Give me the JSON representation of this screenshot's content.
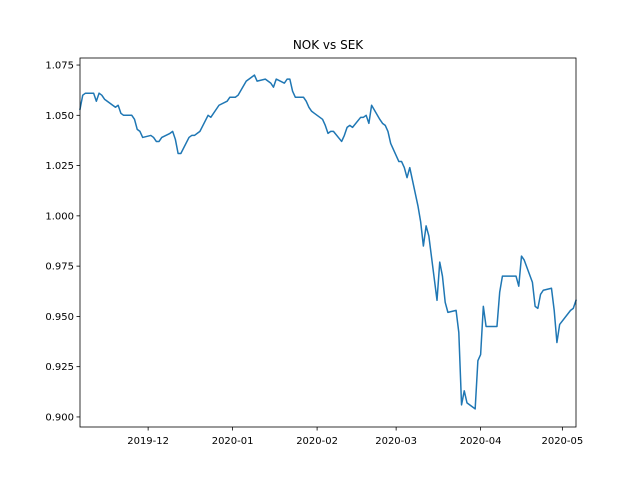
{
  "chart_data": {
    "type": "line",
    "title": "NOK vs SEK",
    "xlabel": "",
    "ylabel": "",
    "xlim": [
      "2019-11-06",
      "2020-05-06"
    ],
    "ylim": [
      0.895,
      1.0785
    ],
    "grid": false,
    "x_ticks": [
      {
        "date": "2019-12-01",
        "label": "2019-12"
      },
      {
        "date": "2020-01-01",
        "label": "2020-01"
      },
      {
        "date": "2020-02-01",
        "label": "2020-02"
      },
      {
        "date": "2020-03-01",
        "label": "2020-03"
      },
      {
        "date": "2020-04-01",
        "label": "2020-04"
      },
      {
        "date": "2020-05-01",
        "label": "2020-05"
      }
    ],
    "y_ticks": [
      {
        "value": 0.9,
        "label": "0.900"
      },
      {
        "value": 0.925,
        "label": "0.925"
      },
      {
        "value": 0.95,
        "label": "0.950"
      },
      {
        "value": 0.975,
        "label": "0.975"
      },
      {
        "value": 1.0,
        "label": "1.000"
      },
      {
        "value": 1.025,
        "label": "1.025"
      },
      {
        "value": 1.05,
        "label": "1.050"
      },
      {
        "value": 1.075,
        "label": "1.075"
      }
    ],
    "colors": {
      "line": "#1f77b4"
    },
    "series": [
      {
        "x": [
          "2019-11-06",
          "2019-11-07",
          "2019-11-08",
          "2019-11-11",
          "2019-11-12",
          "2019-11-13",
          "2019-11-14",
          "2019-11-15",
          "2019-11-18",
          "2019-11-19",
          "2019-11-20",
          "2019-11-21",
          "2019-11-22",
          "2019-11-25",
          "2019-11-26",
          "2019-11-27",
          "2019-11-28",
          "2019-11-29",
          "2019-12-02",
          "2019-12-03",
          "2019-12-04",
          "2019-12-05",
          "2019-12-06",
          "2019-12-09",
          "2019-12-10",
          "2019-12-11",
          "2019-12-12",
          "2019-12-13",
          "2019-12-16",
          "2019-12-17",
          "2019-12-18",
          "2019-12-19",
          "2019-12-20",
          "2019-12-23",
          "2019-12-24",
          "2019-12-27",
          "2019-12-30",
          "2019-12-31",
          "2020-01-02",
          "2020-01-03",
          "2020-01-06",
          "2020-01-07",
          "2020-01-08",
          "2020-01-09",
          "2020-01-10",
          "2020-01-13",
          "2020-01-14",
          "2020-01-15",
          "2020-01-16",
          "2020-01-17",
          "2020-01-20",
          "2020-01-21",
          "2020-01-22",
          "2020-01-23",
          "2020-01-24",
          "2020-01-27",
          "2020-01-28",
          "2020-01-29",
          "2020-01-30",
          "2020-01-31",
          "2020-02-03",
          "2020-02-04",
          "2020-02-05",
          "2020-02-06",
          "2020-02-07",
          "2020-02-10",
          "2020-02-11",
          "2020-02-12",
          "2020-02-13",
          "2020-02-14",
          "2020-02-17",
          "2020-02-18",
          "2020-02-19",
          "2020-02-20",
          "2020-02-21",
          "2020-02-24",
          "2020-02-25",
          "2020-02-26",
          "2020-02-27",
          "2020-02-28",
          "2020-03-02",
          "2020-03-03",
          "2020-03-04",
          "2020-03-05",
          "2020-03-06",
          "2020-03-09",
          "2020-03-10",
          "2020-03-11",
          "2020-03-12",
          "2020-03-13",
          "2020-03-16",
          "2020-03-17",
          "2020-03-18",
          "2020-03-19",
          "2020-03-20",
          "2020-03-23",
          "2020-03-24",
          "2020-03-25",
          "2020-03-26",
          "2020-03-27",
          "2020-03-30",
          "2020-03-31",
          "2020-04-01",
          "2020-04-02",
          "2020-04-03",
          "2020-04-06",
          "2020-04-07",
          "2020-04-08",
          "2020-04-09",
          "2020-04-14",
          "2020-04-15",
          "2020-04-16",
          "2020-04-17",
          "2020-04-20",
          "2020-04-21",
          "2020-04-22",
          "2020-04-23",
          "2020-04-24",
          "2020-04-27",
          "2020-04-28",
          "2020-04-29",
          "2020-04-30",
          "2020-05-04",
          "2020-05-05",
          "2020-05-06"
        ],
        "values": [
          1.053,
          1.06,
          1.061,
          1.061,
          1.057,
          1.061,
          1.06,
          1.058,
          1.055,
          1.054,
          1.055,
          1.051,
          1.05,
          1.05,
          1.048,
          1.043,
          1.042,
          1.039,
          1.04,
          1.039,
          1.037,
          1.037,
          1.039,
          1.041,
          1.042,
          1.038,
          1.031,
          1.031,
          1.039,
          1.04,
          1.04,
          1.041,
          1.042,
          1.05,
          1.049,
          1.055,
          1.057,
          1.059,
          1.059,
          1.06,
          1.067,
          1.068,
          1.069,
          1.07,
          1.067,
          1.068,
          1.067,
          1.066,
          1.064,
          1.068,
          1.066,
          1.068,
          1.068,
          1.062,
          1.059,
          1.059,
          1.057,
          1.054,
          1.052,
          1.051,
          1.048,
          1.045,
          1.041,
          1.042,
          1.042,
          1.037,
          1.04,
          1.044,
          1.045,
          1.044,
          1.049,
          1.049,
          1.05,
          1.046,
          1.055,
          1.048,
          1.046,
          1.045,
          1.042,
          1.036,
          1.027,
          1.027,
          1.024,
          1.019,
          1.024,
          1.005,
          0.997,
          0.985,
          0.995,
          0.99,
          0.958,
          0.977,
          0.97,
          0.957,
          0.952,
          0.953,
          0.942,
          0.906,
          0.913,
          0.907,
          0.904,
          0.928,
          0.931,
          0.955,
          0.945,
          0.945,
          0.945,
          0.962,
          0.97,
          0.97,
          0.965,
          0.98,
          0.978,
          0.967,
          0.955,
          0.954,
          0.961,
          0.963,
          0.964,
          0.953,
          0.937,
          0.946,
          0.953,
          0.954,
          0.958
        ]
      }
    ]
  }
}
